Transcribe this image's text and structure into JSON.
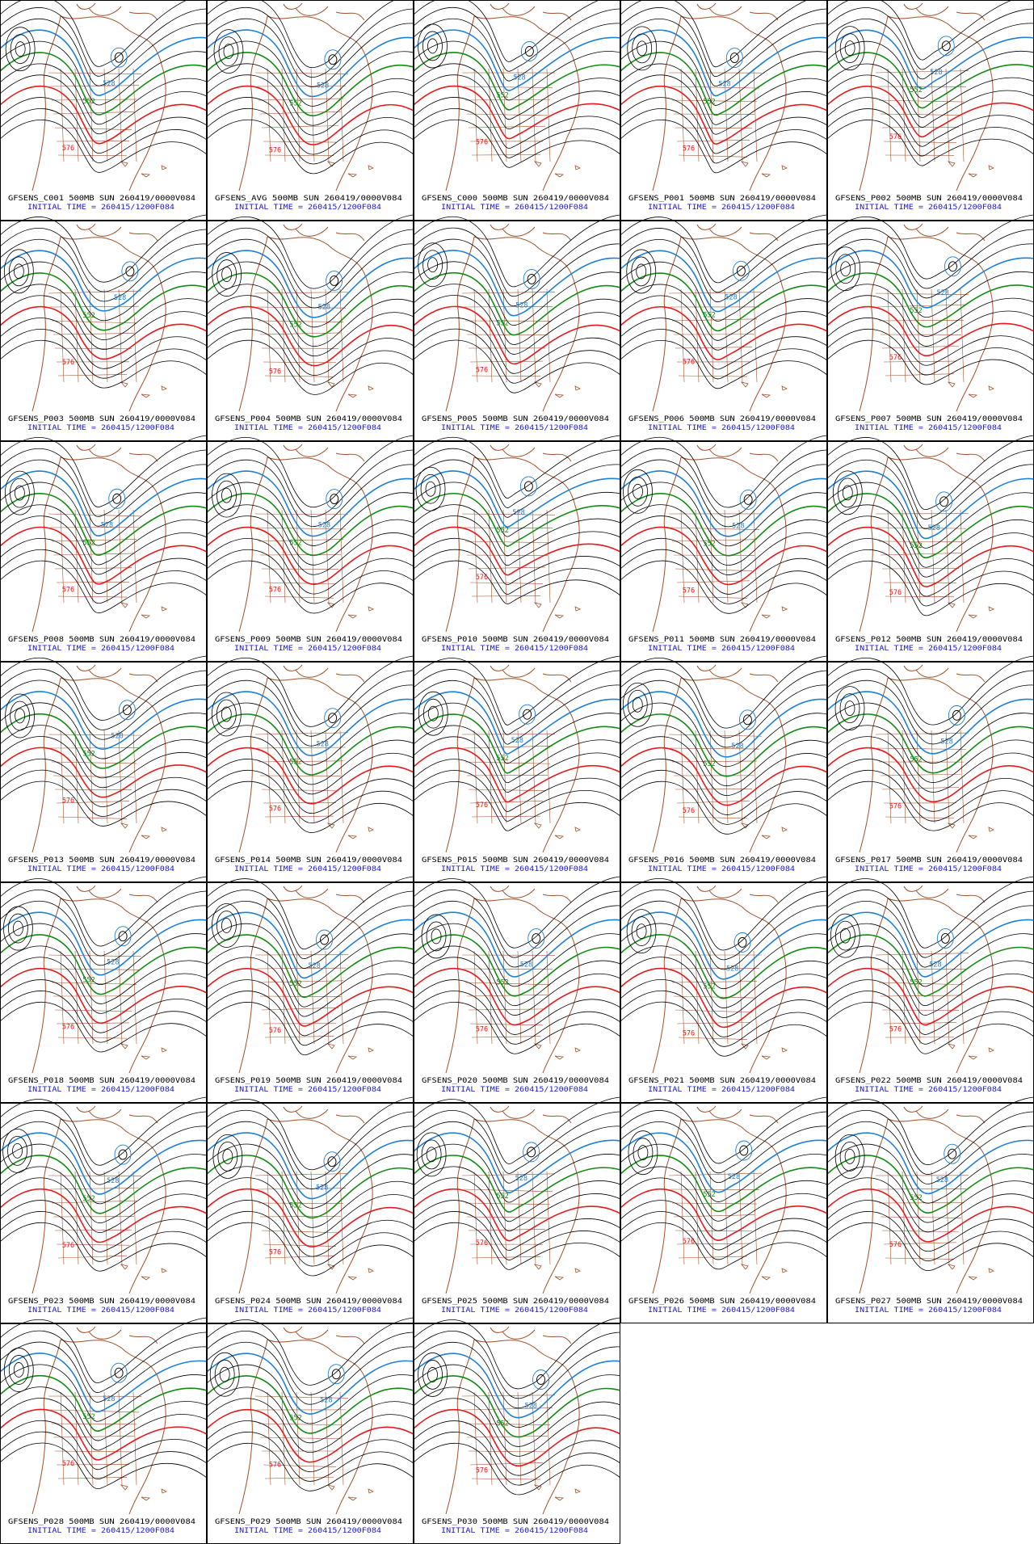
{
  "panels": [
    {
      "title": "GFSENS_C001 500MB SUN 260419/0000V084",
      "init": "INITIAL TIME = 260415/1200F084",
      "labels": [
        "528",
        "552",
        "576"
      ]
    },
    {
      "title": "GFSENS_AVG 500MB SUN 260419/0000V084",
      "init": "INITIAL TIME = 260415/1200F084",
      "labels": [
        "528",
        "552",
        "576"
      ]
    },
    {
      "title": "GFSENS_C000 500MB SUN 260419/0000V084",
      "init": "INITIAL TIME = 260415/1200F084",
      "labels": [
        "528",
        "552",
        "576"
      ]
    },
    {
      "title": "GFSENS_P001 500MB SUN 260419/0000V084",
      "init": "INITIAL TIME = 260415/1200F084",
      "labels": [
        "528",
        "552",
        "576"
      ]
    },
    {
      "title": "GFSENS_P002 500MB SUN 260419/0000V084",
      "init": "INITIAL TIME = 260415/1200F084",
      "labels": [
        "528",
        "552",
        "576"
      ]
    },
    {
      "title": "GFSENS_P003 500MB SUN 260419/0000V084",
      "init": "INITIAL TIME = 260415/1200F084",
      "labels": [
        "528",
        "552",
        "576"
      ]
    },
    {
      "title": "GFSENS_P004 500MB SUN 260419/0000V084",
      "init": "INITIAL TIME = 260415/1200F084",
      "labels": [
        "528",
        "552",
        "576"
      ]
    },
    {
      "title": "GFSENS_P005 500MB SUN 260419/0000V084",
      "init": "INITIAL TIME = 260415/1200F084",
      "labels": [
        "528",
        "552",
        "576"
      ]
    },
    {
      "title": "GFSENS_P006 500MB SUN 260419/0000V084",
      "init": "INITIAL TIME = 260415/1200F084",
      "labels": [
        "528",
        "552",
        "576"
      ]
    },
    {
      "title": "GFSENS_P007 500MB SUN 260419/0000V084",
      "init": "INITIAL TIME = 260415/1200F084",
      "labels": [
        "528",
        "552",
        "576"
      ]
    },
    {
      "title": "GFSENS_P008 500MB SUN 260419/0000V084",
      "init": "INITIAL TIME = 260415/1200F084",
      "labels": [
        "528",
        "552",
        "576"
      ]
    },
    {
      "title": "GFSENS_P009 500MB SUN 260419/0000V084",
      "init": "INITIAL TIME = 260415/1200F084",
      "labels": [
        "528",
        "552",
        "576"
      ]
    },
    {
      "title": "GFSENS_P010 500MB SUN 260419/0000V084",
      "init": "INITIAL TIME = 260415/1200F084",
      "labels": [
        "528",
        "552",
        "576"
      ]
    },
    {
      "title": "GFSENS_P011 500MB SUN 260419/0000V084",
      "init": "INITIAL TIME = 260415/1200F084",
      "labels": [
        "528",
        "552",
        "576"
      ]
    },
    {
      "title": "GFSENS_P012 500MB SUN 260419/0000V084",
      "init": "INITIAL TIME = 260415/1200F084",
      "labels": [
        "528",
        "552",
        "576"
      ]
    },
    {
      "title": "GFSENS_P013 500MB SUN 260419/0000V084",
      "init": "INITIAL TIME = 260415/1200F084",
      "labels": [
        "528",
        "552",
        "576"
      ]
    },
    {
      "title": "GFSENS_P014 500MB SUN 260419/0000V084",
      "init": "INITIAL TIME = 260415/1200F084",
      "labels": [
        "528",
        "552",
        "576"
      ]
    },
    {
      "title": "GFSENS_P015 500MB SUN 260419/0000V084",
      "init": "INITIAL TIME = 260415/1200F084",
      "labels": [
        "528",
        "552",
        "576"
      ]
    },
    {
      "title": "GFSENS_P016 500MB SUN 260419/0000V084",
      "init": "INITIAL TIME = 260415/1200F084",
      "labels": [
        "528",
        "552",
        "576"
      ]
    },
    {
      "title": "GFSENS_P017 500MB SUN 260419/0000V084",
      "init": "INITIAL TIME = 260415/1200F084",
      "labels": [
        "528",
        "552",
        "576"
      ]
    },
    {
      "title": "GFSENS_P018 500MB SUN 260419/0000V084",
      "init": "INITIAL TIME = 260415/1200F084",
      "labels": [
        "528",
        "552",
        "576"
      ]
    },
    {
      "title": "GFSENS_P019 500MB SUN 260419/0000V084",
      "init": "INITIAL TIME = 260415/1200F084",
      "labels": [
        "528",
        "552",
        "576"
      ]
    },
    {
      "title": "GFSENS_P020 500MB SUN 260419/0000V084",
      "init": "INITIAL TIME = 260415/1200F084",
      "labels": [
        "528",
        "552",
        "576"
      ]
    },
    {
      "title": "GFSENS_P021 500MB SUN 260419/0000V084",
      "init": "INITIAL TIME = 260415/1200F084",
      "labels": [
        "528",
        "552",
        "576"
      ]
    },
    {
      "title": "GFSENS_P022 500MB SUN 260419/0000V084",
      "init": "INITIAL TIME = 260415/1200F084",
      "labels": [
        "528",
        "552",
        "576"
      ]
    },
    {
      "title": "GFSENS_P023 500MB SUN 260419/0000V084",
      "init": "INITIAL TIME = 260415/1200F084",
      "labels": [
        "528",
        "552",
        "576"
      ]
    },
    {
      "title": "GFSENS_P024 500MB SUN 260419/0000V084",
      "init": "INITIAL TIME = 260415/1200F084",
      "labels": [
        "528",
        "552",
        "576"
      ]
    },
    {
      "title": "GFSENS_P025 500MB SUN 260419/0000V084",
      "init": "INITIAL TIME = 260415/1200F084",
      "labels": [
        "528",
        "552",
        "576"
      ]
    },
    {
      "title": "GFSENS_P026 500MB SUN 260419/0000V084",
      "init": "INITIAL TIME = 260415/1200F084",
      "labels": [
        "528",
        "552",
        "576"
      ]
    },
    {
      "title": "GFSENS_P027 500MB SUN 260419/0000V084",
      "init": "INITIAL TIME = 260415/1200F084",
      "labels": [
        "528",
        "552",
        "576"
      ]
    },
    {
      "title": "GFSENS_P028 500MB SUN 260419/0000V084",
      "init": "INITIAL TIME = 260415/1200F084",
      "labels": [
        "528",
        "552",
        "576"
      ]
    },
    {
      "title": "GFSENS_P029 500MB SUN 260419/0000V084",
      "init": "INITIAL TIME = 260415/1200F084",
      "labels": [
        "528",
        "552",
        "576"
      ]
    },
    {
      "title": "GFSENS_P030 500MB SUN 260419/0000V084",
      "init": "INITIAL TIME = 260415/1200F084",
      "labels": [
        "528",
        "552",
        "576"
      ]
    }
  ]
}
